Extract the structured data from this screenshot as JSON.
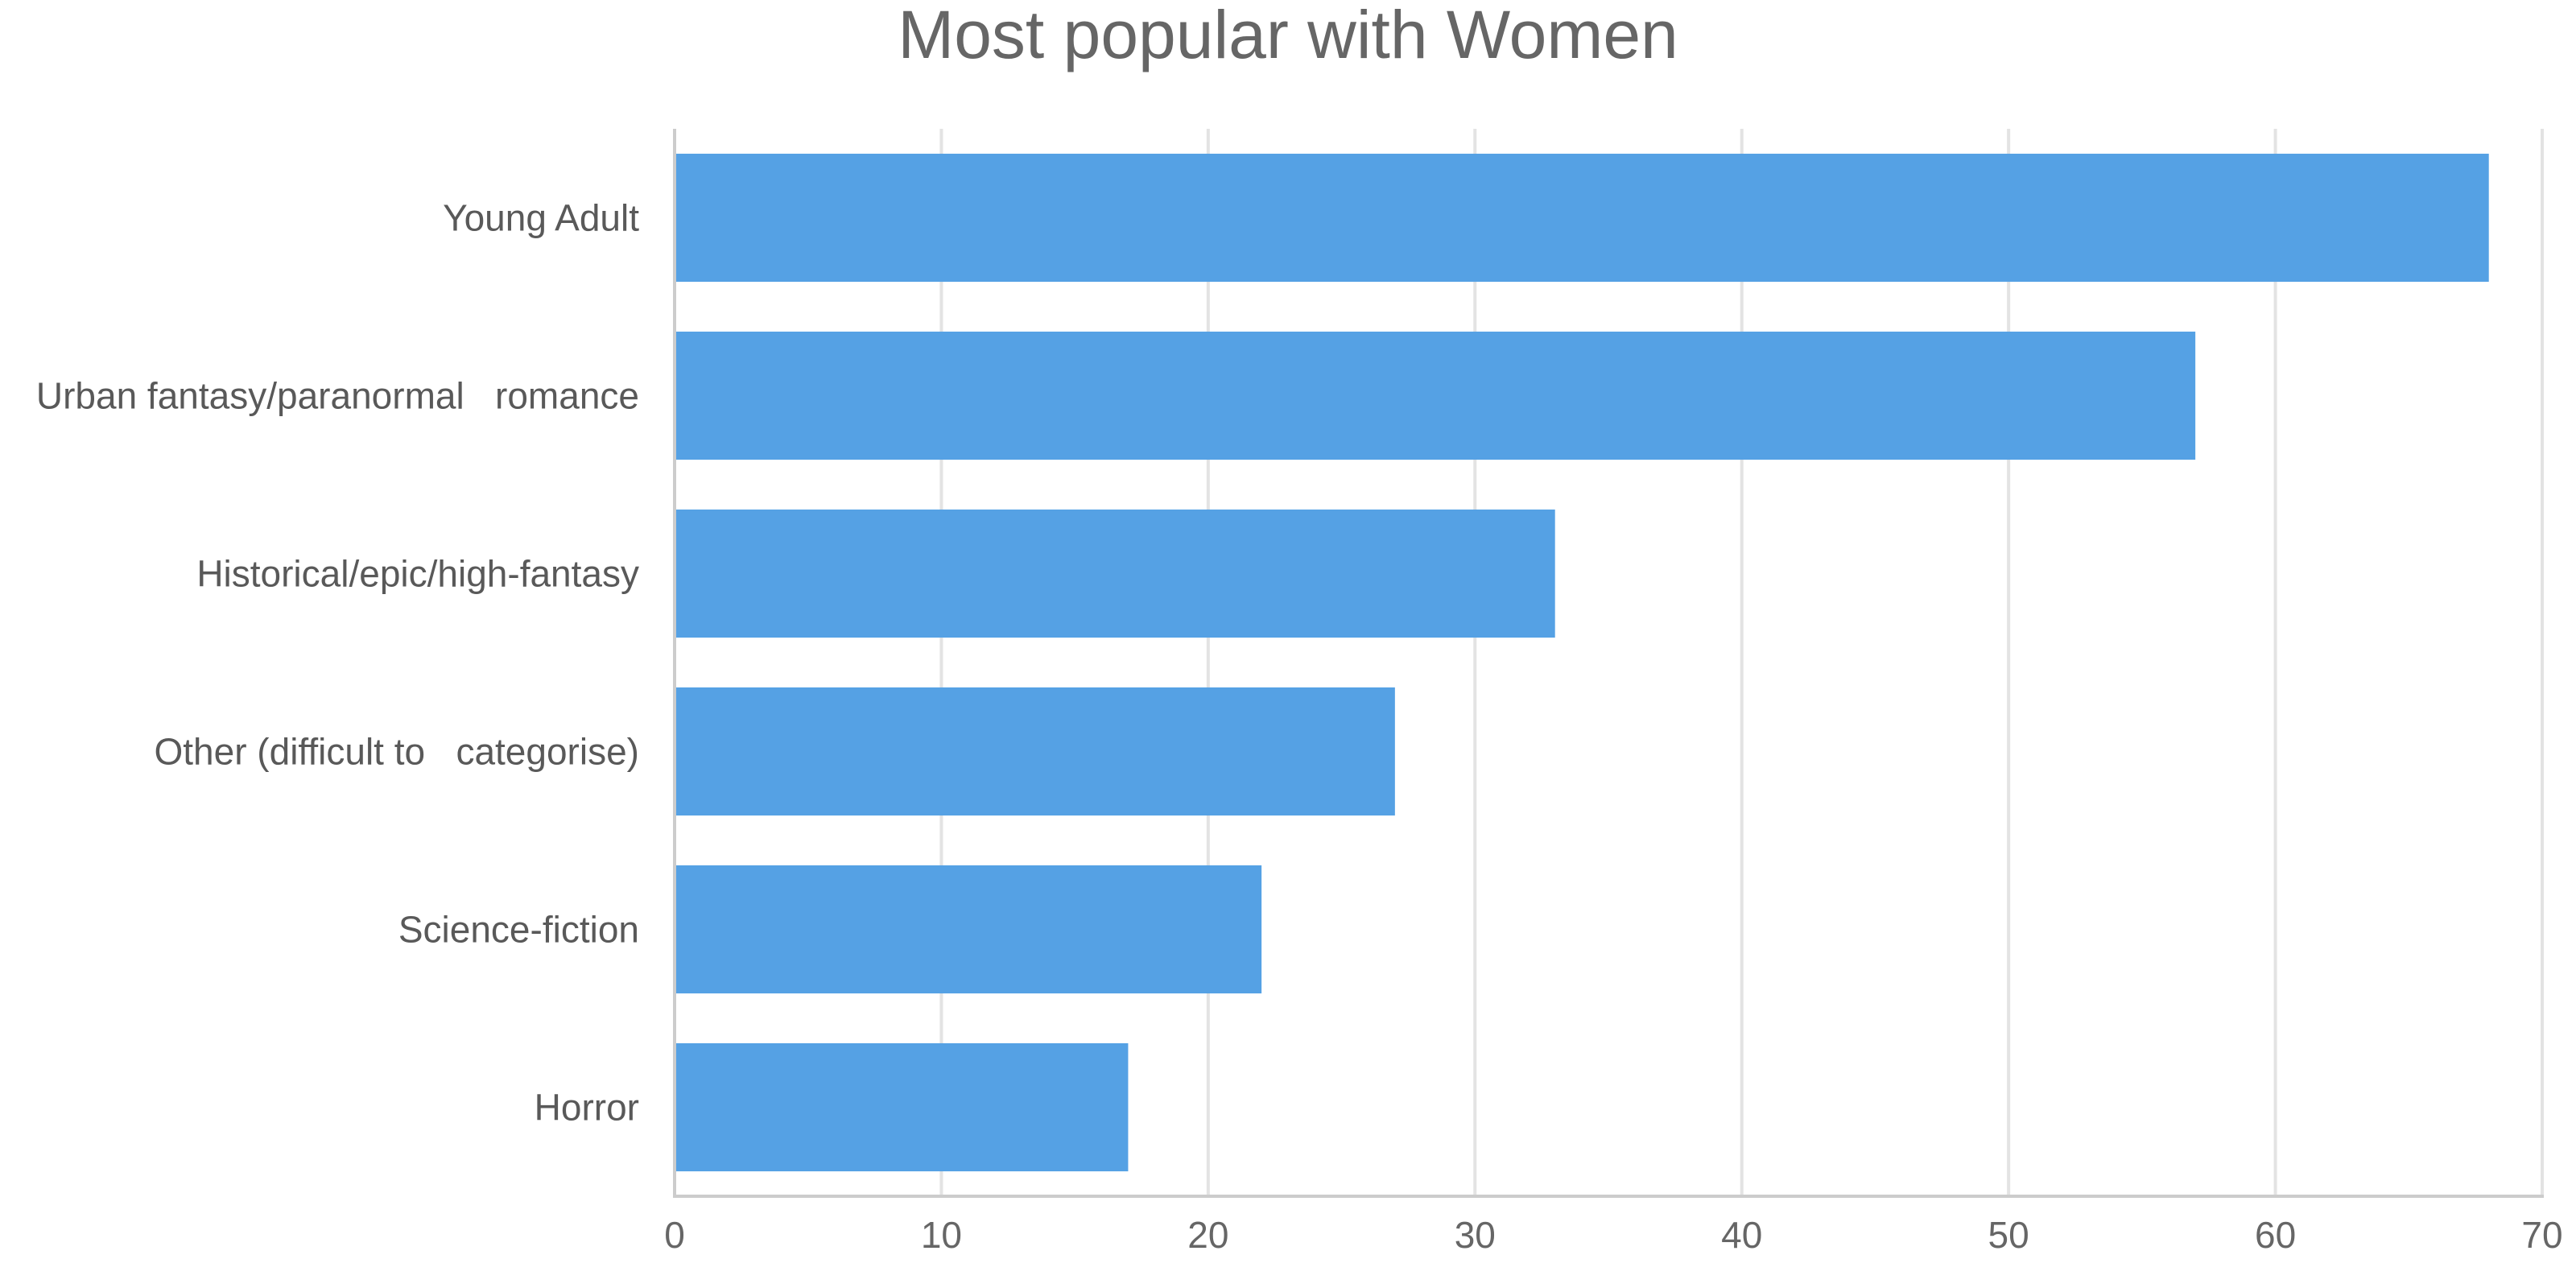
{
  "chart_data": {
    "type": "bar",
    "orientation": "horizontal",
    "title": "Most popular with Women",
    "categories": [
      "Young Adult",
      "Urban fantasy/paranormal   romance",
      "Historical/epic/high-fantasy",
      "Other (difficult to   categorise)",
      "Science-fiction",
      "Horror"
    ],
    "values": [
      68,
      57,
      33,
      27,
      22,
      17
    ],
    "xlim": [
      0,
      70
    ],
    "xticks": [
      0,
      10,
      20,
      30,
      40,
      50,
      60,
      70
    ],
    "grid": true,
    "legend": "none",
    "bar_color": "#55a1e4"
  }
}
